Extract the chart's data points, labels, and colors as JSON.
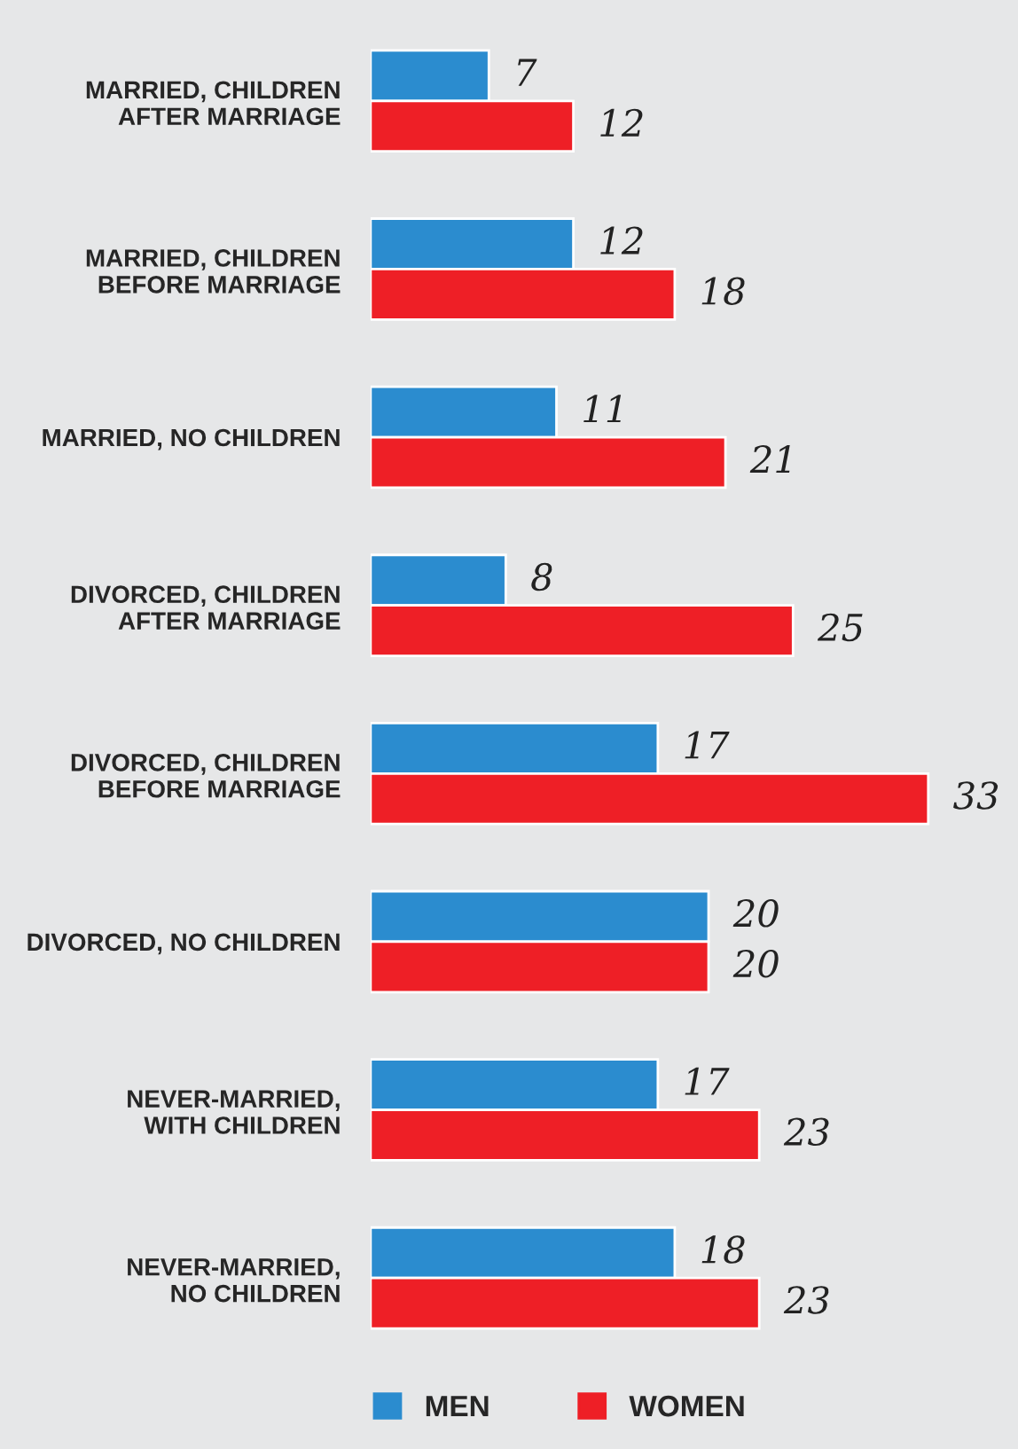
{
  "chart_data": {
    "type": "bar",
    "orientation": "horizontal",
    "data_labels": true,
    "legend": "bottom",
    "grid": false,
    "categories": [
      "MARRIED, CHILDREN\nAFTER MARRIAGE",
      "MARRIED, CHILDREN\nBEFORE MARRIAGE",
      "MARRIED, NO CHILDREN",
      "DIVORCED, CHILDREN\nAFTER MARRIAGE",
      "DIVORCED, CHILDREN\nBEFORE MARRIAGE",
      "DIVORCED, NO CHILDREN",
      "NEVER-MARRIED,\nWITH CHILDREN",
      "NEVER-MARRIED,\nNO CHILDREN"
    ],
    "series": [
      {
        "name": "MEN",
        "color": "#2b8ccf",
        "values": [
          7,
          12,
          11,
          8,
          17,
          20,
          17,
          18
        ]
      },
      {
        "name": "WOMEN",
        "color": "#ee1f26",
        "values": [
          12,
          18,
          21,
          25,
          33,
          20,
          23,
          23
        ]
      }
    ]
  }
}
